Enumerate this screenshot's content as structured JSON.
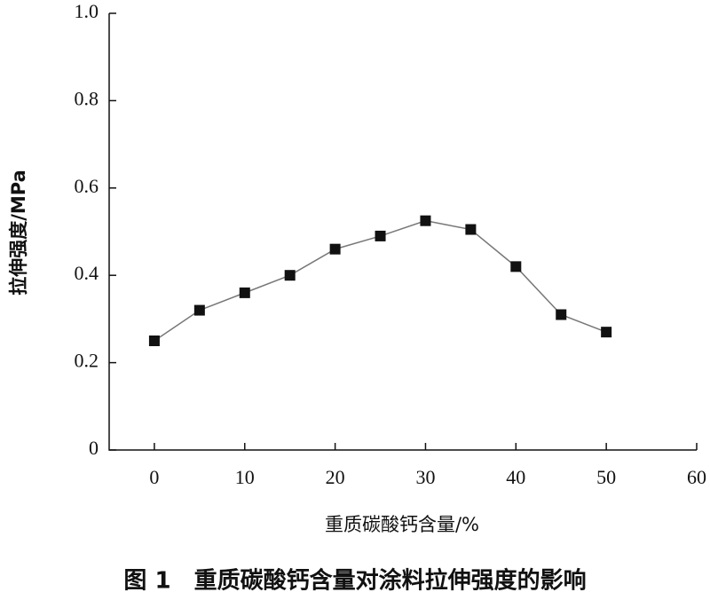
{
  "chart_data": {
    "type": "line",
    "caption": "图 1　重质碳酸钙含量对涂料拉伸强度的影响",
    "x_label": "重质碳酸钙含量/%",
    "y_label": "拉伸强度/MPa",
    "x": [
      0,
      5,
      10,
      15,
      20,
      25,
      30,
      35,
      40,
      45,
      50
    ],
    "series": [
      {
        "color": "#111111",
        "values": [
          0.25,
          0.32,
          0.36,
          0.4,
          0.46,
          0.49,
          0.525,
          0.505,
          0.42,
          0.31,
          0.27
        ]
      }
    ],
    "xlim": [
      -5,
      60
    ],
    "xticks": [
      0,
      10,
      20,
      30,
      40,
      50,
      60
    ],
    "ylim": [
      0,
      1.0
    ],
    "yticks": [
      0,
      0.2,
      0.4,
      0.6,
      0.8,
      {
        "value": 1.0,
        "label": "1.0"
      }
    ],
    "grid": false
  }
}
